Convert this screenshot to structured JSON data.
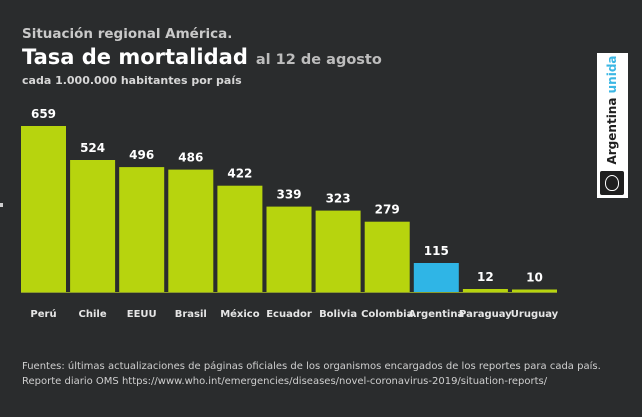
{
  "header": {
    "supertitle": "Situación regional América.",
    "title": "Tasa de mortalidad",
    "date": "al 12 de agosto",
    "subtitle": "cada 1.000.000 habitantes por país"
  },
  "brand": {
    "word1": "Argentina",
    "word2": "unida"
  },
  "footer": {
    "line1": "Fuentes: últimas actualizaciones de páginas oficiales de los organismos encargados de los reportes para cada país.",
    "line2": "Reporte diario OMS https://www.who.int/emergencies/diseases/novel-coronavirus-2019/situation-reports/"
  },
  "colors": {
    "bar": "#b7d40e",
    "highlight": "#2fb5e6",
    "background": "#2a2c2d",
    "baseline": "#8a9a2a"
  },
  "chart_data": {
    "type": "bar",
    "title": "Tasa de mortalidad",
    "xlabel": "",
    "ylabel": "",
    "categories": [
      "Perú",
      "Chile",
      "EEUU",
      "Brasil",
      "México",
      "Ecuador",
      "Bolivia",
      "Colombia",
      "Argentina",
      "Paraguay",
      "Uruguay"
    ],
    "values": [
      659,
      524,
      496,
      486,
      422,
      339,
      323,
      279,
      115,
      12,
      10
    ],
    "highlight": [
      "Argentina"
    ],
    "ylim": [
      0,
      659
    ],
    "grid": false,
    "legend": "none"
  }
}
